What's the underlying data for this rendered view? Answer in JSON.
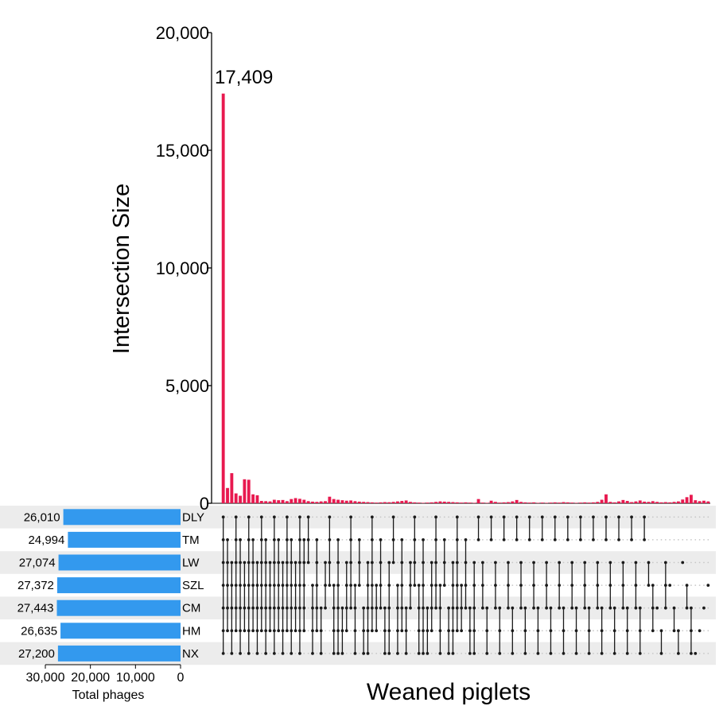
{
  "chart_data": {
    "type": "bar",
    "title": "",
    "ylabel": "Intersection Size",
    "xlabel": "Weaned piglets",
    "ylim": [
      0,
      20000
    ],
    "yticks": [
      0,
      5000,
      10000,
      15000,
      20000
    ],
    "ytick_labels": [
      "0",
      "5,000",
      "10,000",
      "15,000",
      "20,000"
    ],
    "bar_color": "#e8194f",
    "peak_label": "17,409",
    "values": [
      17409,
      650,
      1280,
      420,
      320,
      1020,
      1000,
      380,
      340,
      100,
      90,
      80,
      150,
      130,
      140,
      90,
      180,
      220,
      190,
      150,
      90,
      70,
      60,
      80,
      90,
      280,
      180,
      150,
      130,
      110,
      120,
      90,
      70,
      60,
      50,
      40,
      30,
      40,
      50,
      45,
      60,
      80,
      100,
      120,
      60,
      40,
      30,
      20,
      30,
      40,
      60,
      80,
      70,
      60,
      50,
      40,
      30,
      40,
      30,
      20,
      180,
      30,
      20,
      110,
      60,
      30,
      40,
      50,
      80,
      140,
      60,
      40,
      30,
      40,
      20,
      30,
      20,
      30,
      40,
      30,
      50,
      40,
      30,
      20,
      30,
      40,
      30,
      40,
      60,
      150,
      380,
      60,
      40,
      80,
      140,
      100,
      50,
      80,
      120,
      70,
      60,
      90,
      60,
      40,
      50,
      40,
      60,
      80,
      160,
      260,
      360,
      130,
      90,
      110,
      80
    ],
    "sets": {
      "names": [
        "DLY",
        "TM",
        "LW",
        "SZL",
        "CM",
        "HM",
        "NX"
      ],
      "totals": [
        26010,
        24994,
        27074,
        27372,
        27443,
        26635,
        27200
      ],
      "total_labels": [
        "26,010",
        "24,994",
        "27,074",
        "27,372",
        "27,443",
        "26,635",
        "27,200"
      ],
      "xlabel": "Total phages",
      "xlim": [
        30000,
        0
      ],
      "xticks": [
        30000,
        20000,
        10000,
        0
      ],
      "xtick_labels": [
        "30,000",
        "20,000",
        "10,000",
        "0"
      ],
      "bar_color": "#3399ee"
    },
    "matrix_dot_color": "#1a1a1a",
    "matrix_empty_color": "#c8c8c8",
    "stripe_color": "#ececec"
  }
}
